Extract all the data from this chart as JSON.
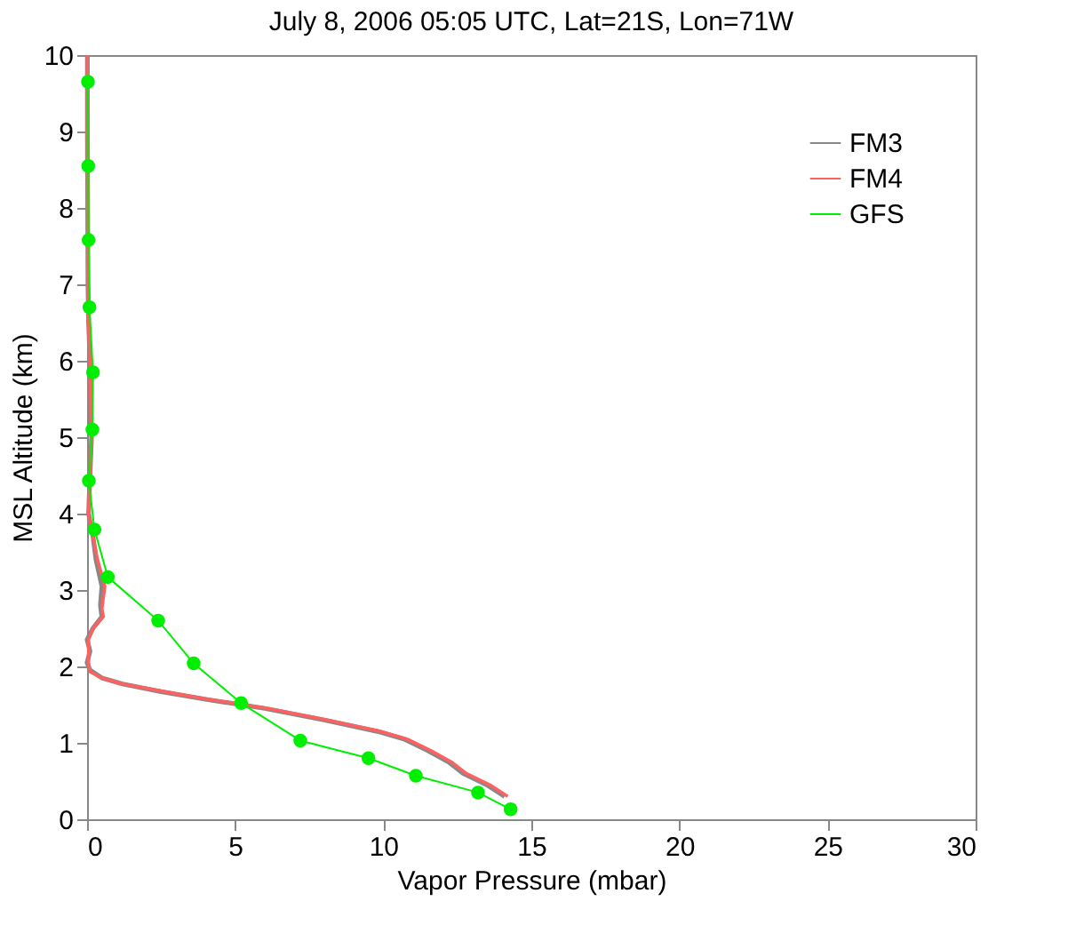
{
  "chart_data": {
    "type": "line",
    "title": "July 8, 2006 05:05 UTC,  Lat=21S, Lon=71W",
    "xlabel": "Vapor Pressure (mbar)",
    "ylabel": "MSL Altitude (km)",
    "xlim": [
      0,
      30
    ],
    "xticks": [
      0,
      5,
      10,
      15,
      20,
      25,
      30
    ],
    "ylim": [
      0,
      10
    ],
    "yticks": [
      0,
      1,
      2,
      3,
      4,
      5,
      6,
      7,
      8,
      9,
      10
    ],
    "grid": false,
    "legend": "top right",
    "series": [
      {
        "name": "FM3",
        "color": "#888888",
        "marker": "none",
        "x": [
          14.1,
          13.5,
          12.7,
          12.2,
          11.5,
          10.7,
          9.8,
          8,
          6,
          4,
          2.5,
          1.2,
          0.5,
          0.1,
          0,
          0.1,
          0,
          0.2,
          0.5,
          0.45,
          0.5,
          0.3,
          0.2,
          0.05,
          0.1,
          0.15,
          0.12,
          0.1,
          0.05,
          0.03,
          0.02,
          0.01,
          0.01
        ],
        "values": [
          0.3,
          0.45,
          0.6,
          0.75,
          0.9,
          1.05,
          1.15,
          1.3,
          1.45,
          1.57,
          1.67,
          1.77,
          1.85,
          1.95,
          2.05,
          2.2,
          2.35,
          2.5,
          2.65,
          2.8,
          3.05,
          3.4,
          3.7,
          4,
          4.5,
          5,
          5.5,
          6,
          6.5,
          7,
          8,
          9,
          10
        ]
      },
      {
        "name": "FM4",
        "color": "#ff6060",
        "marker": "none",
        "x": [
          14.2,
          13.6,
          12.8,
          12.3,
          11.6,
          10.8,
          9.9,
          8.1,
          6.1,
          4.1,
          2.6,
          1.2,
          0.5,
          0.1,
          0.05,
          0.05,
          0.05,
          0.2,
          0.55,
          0.5,
          0.6,
          0.35,
          0.2,
          0.05,
          0.1,
          0.15,
          0.12,
          0.1,
          0.05,
          0.03,
          0.02,
          0.01,
          0.01
        ],
        "values": [
          0.3,
          0.45,
          0.6,
          0.75,
          0.9,
          1.05,
          1.15,
          1.3,
          1.45,
          1.57,
          1.67,
          1.77,
          1.85,
          1.93,
          2.05,
          2.2,
          2.35,
          2.5,
          2.65,
          2.75,
          3.05,
          3.4,
          3.7,
          4,
          4.5,
          5,
          5.5,
          6,
          6.5,
          7,
          8,
          9,
          10
        ]
      },
      {
        "name": "GFS",
        "color": "#00ee00",
        "marker": "circle",
        "x": [
          14.3,
          13.2,
          11.1,
          9.5,
          7.2,
          5.2,
          3.6,
          2.4,
          0.7,
          0.25,
          0.06,
          0.18,
          0.2,
          0.08,
          0.05,
          0.04,
          0.03
        ],
        "values": [
          0.13,
          0.35,
          0.57,
          0.8,
          1.03,
          1.52,
          2.04,
          2.6,
          3.17,
          3.79,
          4.43,
          5.1,
          5.85,
          6.7,
          7.58,
          8.55,
          9.65
        ]
      }
    ]
  }
}
